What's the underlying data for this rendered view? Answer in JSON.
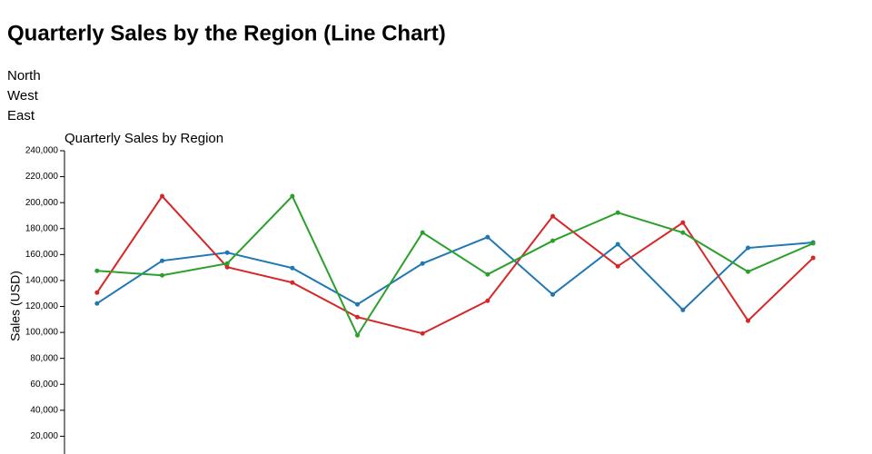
{
  "page_title": "Quarterly Sales by the Region (Line Chart)",
  "chart_data": {
    "type": "line",
    "title": "Quarterly Sales by Region",
    "y_label": "Sales (USD)",
    "categories": [
      null,
      null,
      null,
      null,
      null,
      null,
      null,
      null,
      null,
      null,
      null,
      null
    ],
    "series": [
      {
        "name": "North",
        "color": "#1f77b4",
        "values": [
          122300,
          155200,
          161500,
          149600,
          121600,
          153100,
          173400,
          129200,
          167900,
          117300,
          165100,
          169300
        ]
      },
      {
        "name": "West",
        "color": "#d62728",
        "values": [
          130700,
          205000,
          150300,
          138400,
          111800,
          99200,
          124400,
          189500,
          151000,
          184600,
          109000,
          157400
        ]
      },
      {
        "name": "East",
        "color": "#2ca02c",
        "values": [
          147500,
          144000,
          153100,
          205000,
          97800,
          176900,
          144700,
          170600,
          192300,
          176900,
          146800,
          168600
        ]
      }
    ],
    "ylim": [
      0,
      240000
    ],
    "yticks": [
      {
        "value": 20000,
        "label": "20,000"
      },
      {
        "value": 40000,
        "label": "40,000"
      },
      {
        "value": 60000,
        "label": "60,000"
      },
      {
        "value": 80000,
        "label": "80,000"
      },
      {
        "value": 100000,
        "label": "100,000"
      },
      {
        "value": 120000,
        "label": "120,000"
      },
      {
        "value": 140000,
        "label": "140,000"
      },
      {
        "value": 160000,
        "label": "160,000"
      },
      {
        "value": 180000,
        "label": "180,000"
      },
      {
        "value": 200000,
        "label": "200,000"
      },
      {
        "value": 220000,
        "label": "220,000"
      },
      {
        "value": 240000,
        "label": "240,000"
      }
    ],
    "grid": false
  }
}
